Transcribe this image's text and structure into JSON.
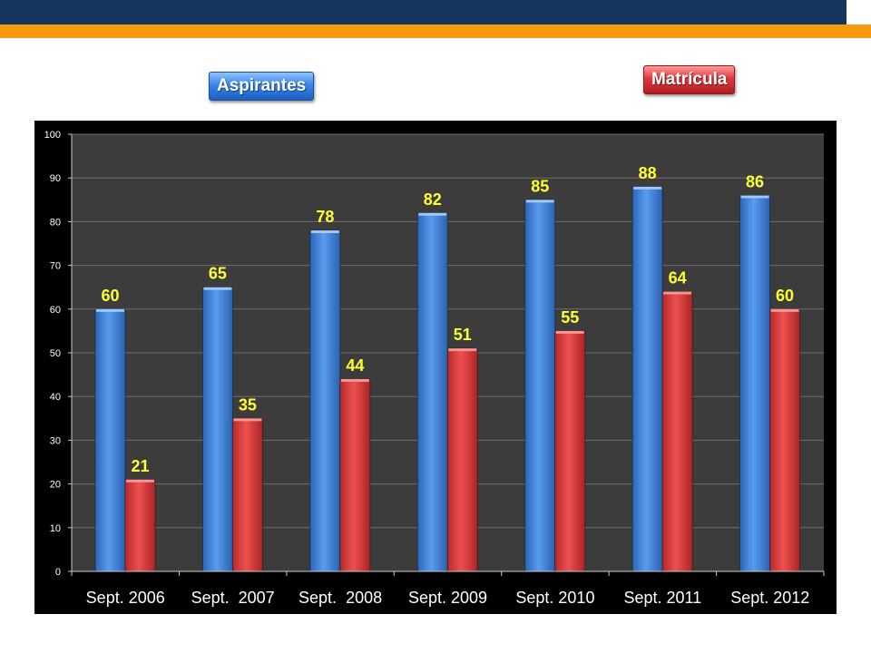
{
  "chart_data": {
    "type": "bar",
    "categories": [
      "Sept. 2006",
      "Sept.  2007",
      "Sept.  2008",
      "Sept. 2009",
      "Sept. 2010",
      "Sept. 2011",
      "Sept. 2012"
    ],
    "series": [
      {
        "name": "Aspirantes",
        "values": [
          60,
          65,
          78,
          82,
          85,
          88,
          86
        ],
        "color": "#3a7fd6"
      },
      {
        "name": "Matrícula",
        "values": [
          21,
          35,
          44,
          51,
          55,
          64,
          60
        ],
        "color": "#d43a3a"
      }
    ],
    "ylim": [
      0,
      100
    ],
    "yticks": [
      "0",
      "10",
      "20",
      "30",
      "40",
      "50",
      "60",
      "70",
      "80",
      "90",
      "100"
    ],
    "grid": true,
    "data_label_color": "#ffff33",
    "plot_background": "#3c3c3c",
    "legend_placement": "top"
  }
}
